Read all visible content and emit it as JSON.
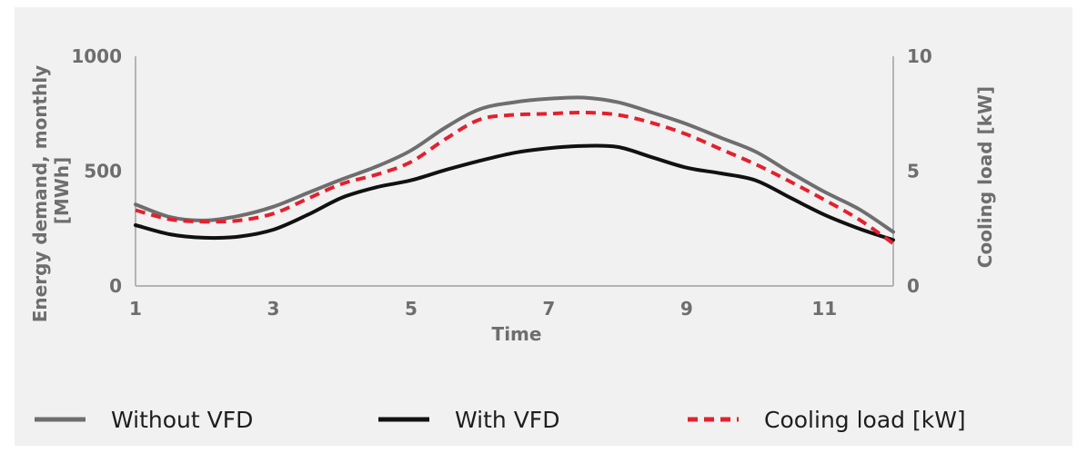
{
  "chart_data": {
    "type": "line",
    "xlabel": "Time",
    "ylabel": "Energy demand, monthly [MWh]",
    "ylabel_lines": [
      "Energy demand, monthly",
      "[MWh]"
    ],
    "y2label": "Cooling load [kW]",
    "xlim": [
      1,
      12
    ],
    "ylim": [
      0,
      1000
    ],
    "y2lim": [
      0,
      10
    ],
    "x_ticks": [
      1,
      3,
      5,
      7,
      9,
      11
    ],
    "x_tick_labels": [
      "1",
      "3",
      "5",
      "7",
      "9",
      "11"
    ],
    "y_ticks": [
      0,
      500,
      1000
    ],
    "y_tick_labels": [
      "0",
      "500",
      "1000"
    ],
    "y2_ticks": [
      0,
      5,
      10
    ],
    "y2_tick_labels": [
      "0",
      "5",
      "10"
    ],
    "grid": false,
    "legend_position": "bottom",
    "x": [
      1,
      1.5,
      2,
      2.5,
      3,
      3.5,
      4,
      4.5,
      5,
      5.5,
      6,
      6.5,
      7,
      7.5,
      8,
      8.5,
      9,
      9.5,
      10,
      10.5,
      11,
      11.5,
      12
    ],
    "series": [
      {
        "name": "Without VFD",
        "axis": "left",
        "color": "#6e6e6e",
        "dash": "solid",
        "values": [
          355,
          300,
          285,
          305,
          345,
          405,
          465,
          520,
          590,
          690,
          770,
          800,
          815,
          820,
          800,
          755,
          705,
          645,
          585,
          495,
          410,
          335,
          235
        ]
      },
      {
        "name": "With VFD",
        "axis": "left",
        "color": "#111111",
        "dash": "solid",
        "values": [
          265,
          225,
          210,
          215,
          245,
          310,
          385,
          430,
          460,
          505,
          545,
          580,
          600,
          610,
          605,
          560,
          515,
          490,
          460,
          385,
          310,
          250,
          200
        ]
      },
      {
        "name": "Cooling load [kW]",
        "axis": "right",
        "color": "#e4202e",
        "dash": "dashed",
        "values": [
          3.3,
          2.9,
          2.8,
          2.85,
          3.15,
          3.8,
          4.45,
          4.85,
          5.4,
          6.4,
          7.25,
          7.45,
          7.5,
          7.55,
          7.45,
          7.1,
          6.6,
          5.95,
          5.3,
          4.55,
          3.75,
          2.9,
          1.85
        ]
      }
    ]
  }
}
